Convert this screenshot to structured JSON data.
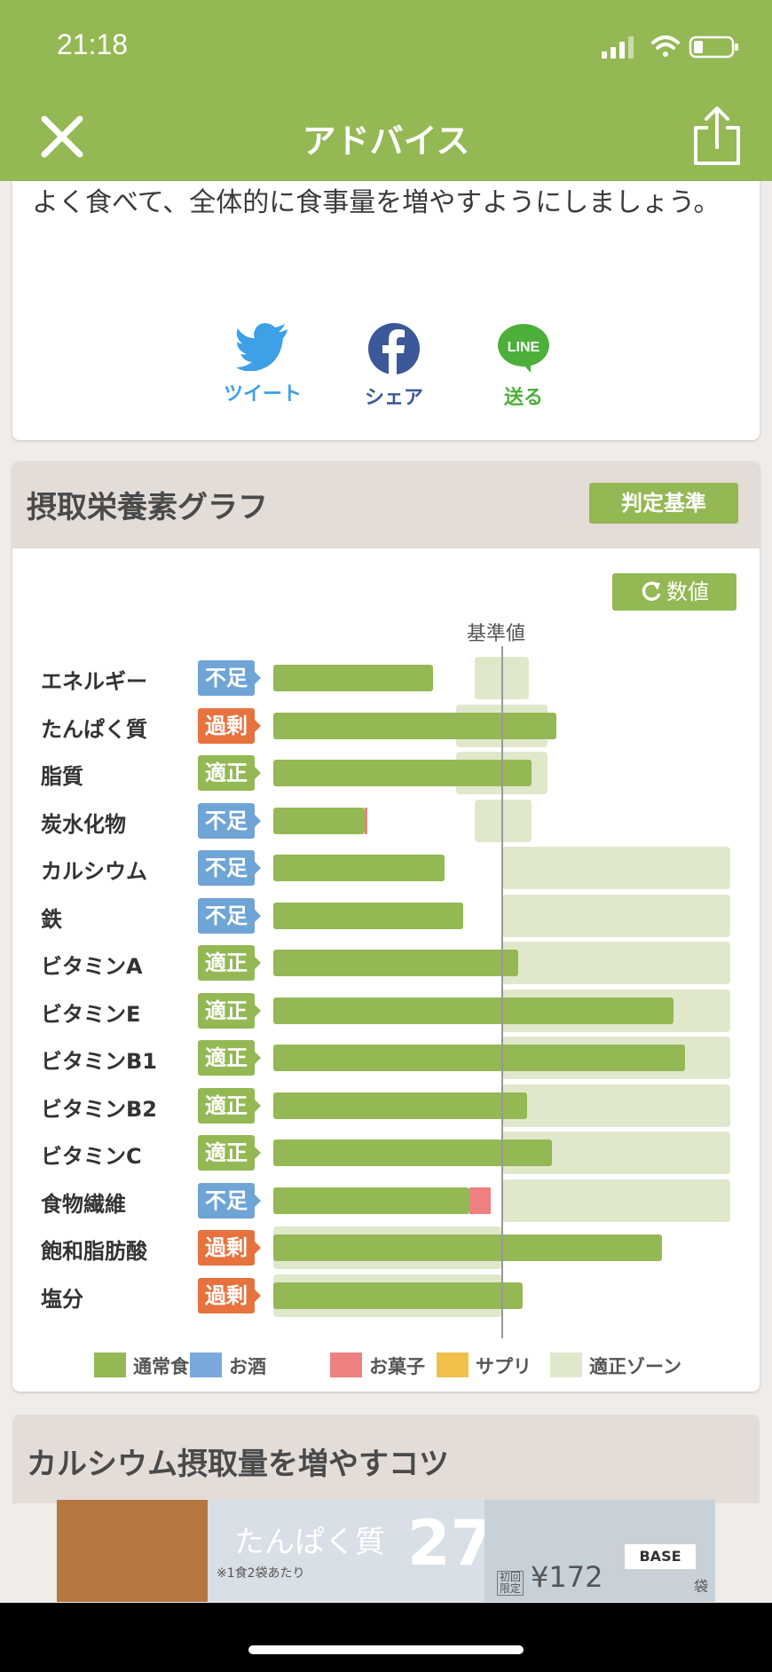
{
  "status": {
    "time": "21:18"
  },
  "header": {
    "title": "アドバイス"
  },
  "advice": {
    "text": "よく食べて、全体的に食事量を増やすようにしましょう。"
  },
  "social": {
    "twitter": {
      "label": "ツイート",
      "color": "#3ea0e6"
    },
    "facebook": {
      "label": "シェア",
      "color": "#3b5998"
    },
    "line": {
      "label": "送る",
      "icon_text": "LINE",
      "color": "#4caf3a"
    }
  },
  "graph": {
    "title": "摂取栄養素グラフ",
    "judge_button": "判定基準",
    "values_button": "数値",
    "baseline_label": "基準値"
  },
  "colors": {
    "brand": "#94b853",
    "status_short": "#6fa4d6",
    "status_excess": "#e8723e",
    "status_ok": "#94b853",
    "food": "#94b853",
    "alcohol": "#7aa8dc",
    "snack": "#ee8080",
    "supplement": "#f2c04a",
    "zone": "#e0e8cc"
  },
  "chart_data": {
    "type": "bar",
    "categories": [
      "エネルギー",
      "たんぱく質",
      "脂質",
      "炭水化物",
      "カルシウム",
      "鉄",
      "ビタミンA",
      "ビタミンE",
      "ビタミンB1",
      "ビタミンB2",
      "ビタミンC",
      "食物繊維",
      "飽和脂肪酸",
      "塩分"
    ],
    "status": [
      "不足",
      "過剰",
      "適正",
      "不足",
      "不足",
      "不足",
      "適正",
      "適正",
      "適正",
      "適正",
      "適正",
      "不足",
      "過剰",
      "過剰"
    ],
    "series": [
      {
        "name": "通常食品",
        "values": [
          70,
          124,
          113,
          40,
          75,
          83,
          107,
          175,
          180,
          111,
          122,
          86,
          170,
          109
        ]
      },
      {
        "name": "お菓子",
        "values": [
          0,
          0,
          0,
          1,
          0,
          0,
          0,
          0,
          0,
          0,
          0,
          9,
          0,
          0
        ]
      }
    ],
    "zones": [
      [
        88,
        112
      ],
      [
        80,
        120
      ],
      [
        80,
        120
      ],
      [
        88,
        113
      ],
      [
        100,
        200
      ],
      [
        100,
        200
      ],
      [
        100,
        200
      ],
      [
        100,
        200
      ],
      [
        100,
        200
      ],
      [
        100,
        200
      ],
      [
        100,
        200
      ],
      [
        100,
        200
      ],
      [
        0,
        100
      ],
      [
        0,
        100
      ]
    ],
    "baseline": 100,
    "xlim": [
      0,
      200
    ],
    "legend": [
      "通常食品",
      "お酒",
      "お菓子",
      "サプリ",
      "適正ゾーン"
    ],
    "legend_position": "bottom"
  },
  "tips": {
    "title": "カルシウム摂取量を増やすコツ"
  },
  "ad": {
    "headline": "たんぱく質",
    "number": "27",
    "note": "※1食2袋あたり",
    "brand": "BASE",
    "first_label": "初回限定",
    "price": "¥172",
    "unit": "袋"
  }
}
